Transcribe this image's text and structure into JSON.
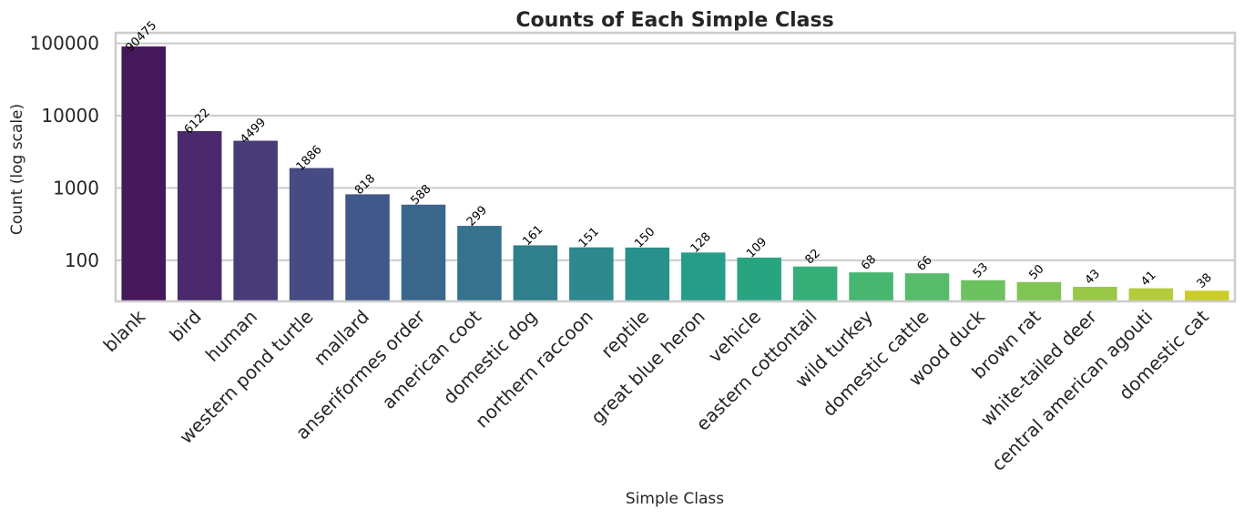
{
  "chart_data": {
    "type": "bar",
    "title": "Counts of Each Simple Class",
    "xlabel": "Simple Class",
    "ylabel": "Count (log scale)",
    "yscale": "log",
    "ylim": [
      27,
      140000
    ],
    "yticks": [
      100,
      1000,
      10000,
      100000
    ],
    "ytick_labels": [
      "100",
      "1000",
      "10000",
      "100000"
    ],
    "grid": "horizontal",
    "colormap": "viridis",
    "categories": [
      "blank",
      "bird",
      "human",
      "western pond turtle",
      "mallard",
      "anseriformes order",
      "american coot",
      "domestic dog",
      "northern raccoon",
      "reptile",
      "great blue heron",
      "vehicle",
      "eastern cottontail",
      "wild turkey",
      "domestic cattle",
      "wood duck",
      "brown rat",
      "white-tailed deer",
      "central american agouti",
      "domestic cat"
    ],
    "values": [
      90475,
      6122,
      4499,
      1886,
      818,
      588,
      299,
      161,
      151,
      150,
      128,
      109,
      82,
      68,
      66,
      53,
      50,
      43,
      41,
      38
    ],
    "data_labels": [
      "90475",
      "6122",
      "4499",
      "1886",
      "818",
      "588",
      "299",
      "161",
      "151",
      "150",
      "128",
      "109",
      "82",
      "68",
      "66",
      "53",
      "50",
      "43",
      "41",
      "38"
    ],
    "colors": [
      "#45185b",
      "#4a2a6d",
      "#493a78",
      "#464b83",
      "#40598a",
      "#3b678d",
      "#36728e",
      "#307f8d",
      "#2d898d",
      "#29918b",
      "#259d88",
      "#29a481",
      "#35ae78",
      "#46b671",
      "#57bb6b",
      "#6dc260",
      "#80c554",
      "#9ac847",
      "#b3cc3b",
      "#cbcd2a"
    ]
  }
}
